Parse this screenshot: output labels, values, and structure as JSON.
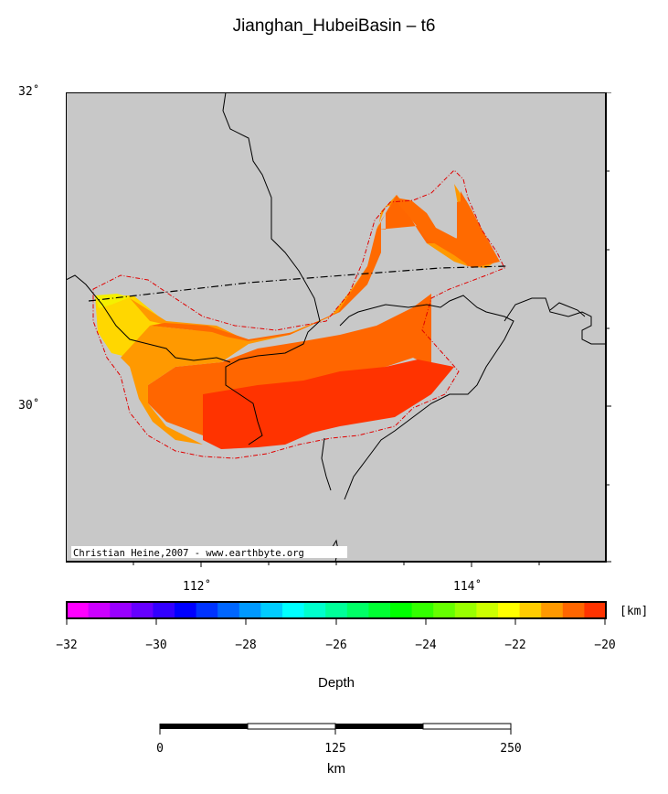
{
  "title": "Jianghan_HubeiBasin – t6",
  "map": {
    "lat_labels": [
      "32˚",
      "30˚"
    ],
    "lon_labels": [
      "112˚",
      "114˚"
    ],
    "credit": "Christian Heine,2007 - www.earthbyte.org",
    "land_color": "#c8c8c8",
    "coast_color": "#000000",
    "outline_color": "#e00000"
  },
  "colorbar": {
    "unit": "[km]",
    "tick_labels": [
      "−32",
      "−30",
      "−28",
      "−26",
      "−24",
      "−22",
      "−20"
    ],
    "min": -32,
    "max": -20,
    "colors": [
      "#ff00ff",
      "#cc00ff",
      "#9900ff",
      "#6600ff",
      "#3300ff",
      "#0000ff",
      "#0033ff",
      "#0066ff",
      "#0099ff",
      "#00ccff",
      "#00ffff",
      "#00ffcc",
      "#00ff99",
      "#00ff66",
      "#00ff33",
      "#00ff00",
      "#33ff00",
      "#66ff00",
      "#99ff00",
      "#ccff00",
      "#ffff00",
      "#ffcc00",
      "#ff9900",
      "#ff6600",
      "#ff3300"
    ],
    "title": "Depth"
  },
  "scalebar": {
    "labels": [
      "0",
      "125",
      "250"
    ],
    "title": "km"
  }
}
